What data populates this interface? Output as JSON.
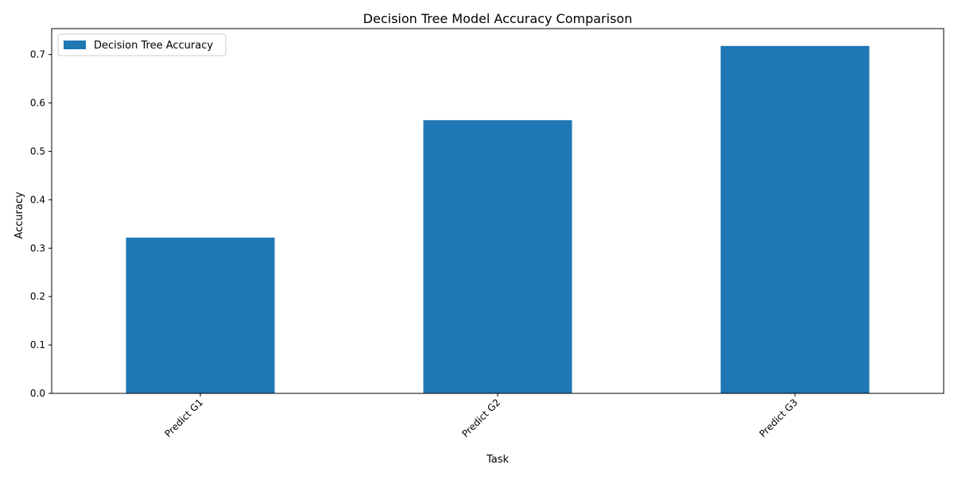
{
  "chart_data": {
    "type": "bar",
    "title": "Decision Tree Model Accuracy Comparison",
    "xlabel": "Task",
    "ylabel": "Accuracy",
    "categories": [
      "Predict G1",
      "Predict G2",
      "Predict G3"
    ],
    "series": [
      {
        "name": "Decision Tree Accuracy",
        "values": [
          0.3218,
          0.5644,
          0.7178
        ],
        "color": "#1f77b4"
      }
    ],
    "ylim": [
      0,
      0.7536
    ],
    "yticks": [
      "0.0",
      "0.1",
      "0.2",
      "0.3",
      "0.4",
      "0.5",
      "0.6",
      "0.7"
    ],
    "x_tick_rotation": 45,
    "grid": false,
    "legend": "top-left"
  }
}
